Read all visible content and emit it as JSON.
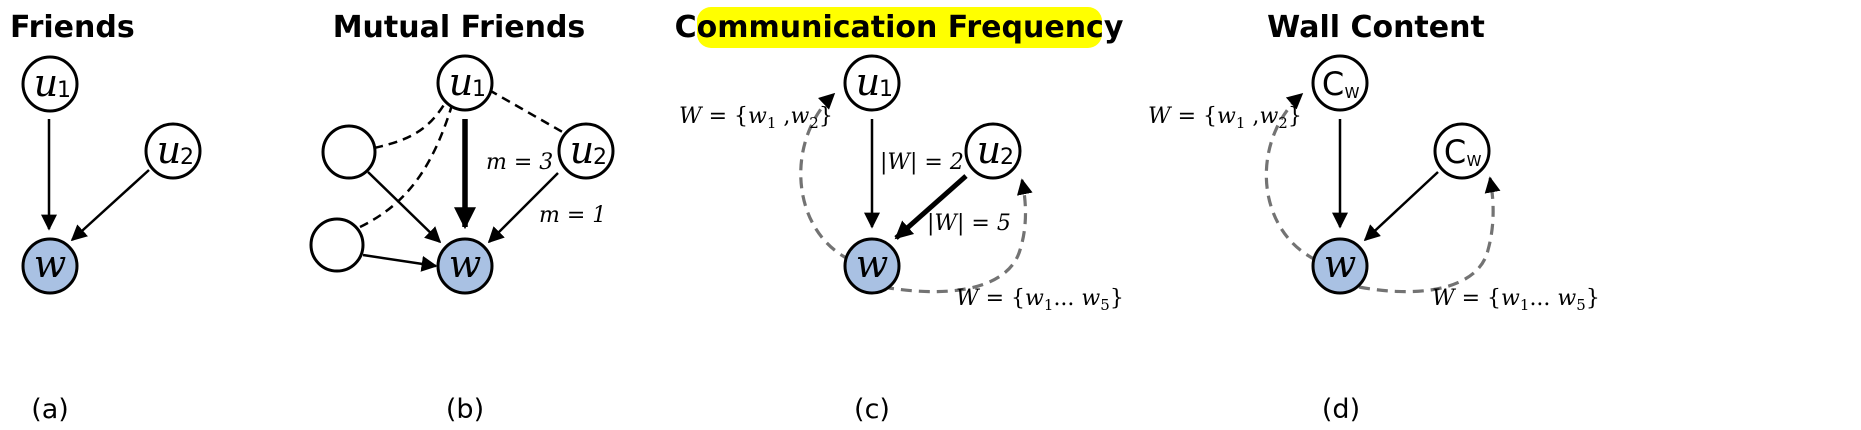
{
  "panels": {
    "a": {
      "title": "Friends",
      "caption": "(a)",
      "nodes": {
        "u1": "u",
        "u1_sub": "1",
        "u2": "u",
        "u2_sub": "2",
        "w": "w"
      }
    },
    "b": {
      "title": "Mutual Friends",
      "caption": "(b)",
      "nodes": {
        "u1": "u",
        "u1_sub": "1",
        "u2": "u",
        "u2_sub": "2",
        "w": "w"
      },
      "edge_labels": {
        "m_u1": "m = 3",
        "m_u2": "m = 1"
      }
    },
    "c": {
      "title": "Communication Frequency",
      "caption": "(c)",
      "nodes": {
        "u1": "u",
        "u1_sub": "1",
        "u2": "u",
        "u2_sub": "2",
        "w": "w"
      },
      "edge_labels": {
        "count_u1": "|W| = 2",
        "count_u2": "|W| = 5"
      },
      "set_labels": {
        "upper": "W = {w1 ,w2}",
        "lower": "W = {w1... w5}"
      }
    },
    "d": {
      "title": "Wall Content",
      "caption": "(d)",
      "nodes": {
        "cw1": "C",
        "cw1_sub": "W",
        "cw2": "C",
        "cw2_sub": "W",
        "w": "w"
      },
      "set_labels": {
        "upper": "W = {w1 ,w2}",
        "lower": "W = {w1... w5}"
      }
    }
  },
  "colors": {
    "highlight": "#ffff00",
    "target_node_fill": "#a9c1e3",
    "dashed_grey": "#737373"
  }
}
